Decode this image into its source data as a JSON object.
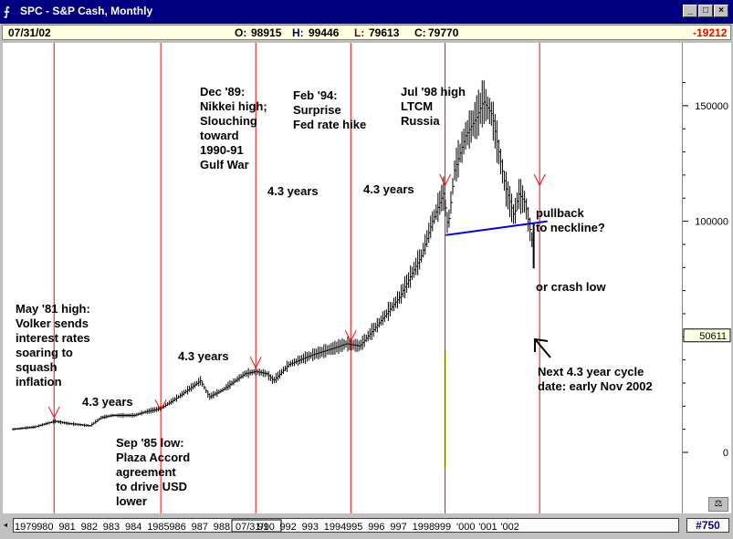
{
  "window": {
    "title": "SPC - S&P Cash, Monthly",
    "app_icon": "chart-app-icon",
    "buttons": {
      "minimize": "_",
      "maximize": "□",
      "close": "×"
    }
  },
  "quote": {
    "date": "07/31/02",
    "open_label": "O:",
    "open": "98915",
    "high_label": "H:",
    "high": "99446",
    "low_label": "L:",
    "low": "79613",
    "close_label": "C:",
    "close": "79770",
    "change": "-19212"
  },
  "colors": {
    "bars": "#000000",
    "cycle_lines": "#ff0000",
    "neckline": "#0000ff",
    "volume_band": "#ccff33",
    "title_bg": "#000080"
  },
  "chart_data": {
    "type": "bar",
    "title": "",
    "y_ticks": [
      {
        "value": 150000,
        "label": "150000"
      },
      {
        "value": 100000,
        "label": "100000"
      },
      {
        "value": 0,
        "label": "0"
      }
    ],
    "ylim": [
      -20000,
      173000
    ],
    "last_price_label": "50611",
    "last_price_value": 50611,
    "x_years": [
      "1979",
      "1980",
      "1981",
      "1982",
      "1983",
      "1984",
      "1985",
      "1986",
      "1987",
      "1988",
      "07/31/90",
      "1991",
      "1992",
      "1993",
      "1994",
      "1995",
      "1996",
      "1997",
      "1998",
      "1999",
      "2000",
      "2001",
      "2002"
    ],
    "x_tick_labels": [
      "1979",
      "980",
      "981",
      "982",
      "983",
      "984",
      "1985",
      "986",
      "987",
      "988",
      "07/31/90",
      "91",
      "992",
      "993",
      "1994",
      "995",
      "996",
      "997",
      "1998",
      "999",
      "'000",
      "'001",
      "'002"
    ],
    "series": [
      {
        "values_by_year": [
          {
            "year": 1979.0,
            "value": 10000
          },
          {
            "year": 1980.0,
            "value": 11000
          },
          {
            "year": 1980.9,
            "value": 13500
          },
          {
            "year": 1981.5,
            "value": 12500
          },
          {
            "year": 1982.5,
            "value": 11500
          },
          {
            "year": 1983.0,
            "value": 15000
          },
          {
            "year": 1983.5,
            "value": 16000
          },
          {
            "year": 1984.5,
            "value": 16000
          },
          {
            "year": 1985.0,
            "value": 17500
          },
          {
            "year": 1985.7,
            "value": 19000
          },
          {
            "year": 1986.5,
            "value": 24000
          },
          {
            "year": 1987.5,
            "value": 31000
          },
          {
            "year": 1987.9,
            "value": 24000
          },
          {
            "year": 1988.5,
            "value": 27000
          },
          {
            "year": 1989.5,
            "value": 34000
          },
          {
            "year": 1990.0,
            "value": 35000
          },
          {
            "year": 1990.5,
            "value": 34000
          },
          {
            "year": 1990.8,
            "value": 31000
          },
          {
            "year": 1991.5,
            "value": 38000
          },
          {
            "year": 1992.5,
            "value": 42000
          },
          {
            "year": 1993.5,
            "value": 45000
          },
          {
            "year": 1994.1,
            "value": 47000
          },
          {
            "year": 1994.7,
            "value": 46000
          },
          {
            "year": 1995.5,
            "value": 55000
          },
          {
            "year": 1996.5,
            "value": 67000
          },
          {
            "year": 1997.5,
            "value": 85000
          },
          {
            "year": 1998.0,
            "value": 100000
          },
          {
            "year": 1998.5,
            "value": 112000
          },
          {
            "year": 1998.7,
            "value": 97000
          },
          {
            "year": 1999.0,
            "value": 122000
          },
          {
            "year": 1999.5,
            "value": 137000
          },
          {
            "year": 2000.0,
            "value": 145000
          },
          {
            "year": 2000.3,
            "value": 152000
          },
          {
            "year": 2000.7,
            "value": 146000
          },
          {
            "year": 2001.0,
            "value": 130000
          },
          {
            "year": 2001.3,
            "value": 115000
          },
          {
            "year": 2001.7,
            "value": 102000
          },
          {
            "year": 2001.9,
            "value": 112000
          },
          {
            "year": 2002.2,
            "value": 108000
          },
          {
            "year": 2002.5,
            "value": 92000
          },
          {
            "year": 2002.58,
            "value": 79770
          }
        ]
      }
    ],
    "cycle_lines_years": [
      1980.87,
      1985.7,
      1990.0,
      1994.3,
      1998.57,
      2002.85
    ],
    "neckline": {
      "from": {
        "year": 1998.6,
        "value": 94000
      },
      "to": {
        "year": 2003.2,
        "value": 100000
      }
    },
    "cycle_markers_years": [
      1980.87,
      1985.7,
      1990.0,
      1994.3,
      1998.57,
      2002.85
    ],
    "annotations": {
      "may81": [
        "May '81 high:",
        "Volker sends",
        "interest rates",
        "soaring to",
        "squash",
        "inflation"
      ],
      "years_1": "4.3 years",
      "sep85": [
        "Sep '85 low:",
        "Plaza Accord",
        "agreement",
        "to drive USD",
        "lower"
      ],
      "years_2": "4.3 years",
      "dec89": [
        "Dec '89:",
        "Nikkei high;",
        "Slouching",
        "toward",
        "1990-91",
        "Gulf War"
      ],
      "years_3": "4.3 years",
      "feb94": [
        "Feb '94:",
        "Surprise",
        "Fed rate hike"
      ],
      "years_4": "4.3 years",
      "jul98": [
        "Jul '98 high",
        "LTCM",
        "Russia"
      ],
      "pullback": [
        "pullback",
        "to neckline?"
      ],
      "crash": "or crash low",
      "next_cycle": [
        "Next 4.3 year cycle",
        "date: early Nov 2002"
      ]
    }
  },
  "footer": {
    "bar_count": "#750"
  }
}
